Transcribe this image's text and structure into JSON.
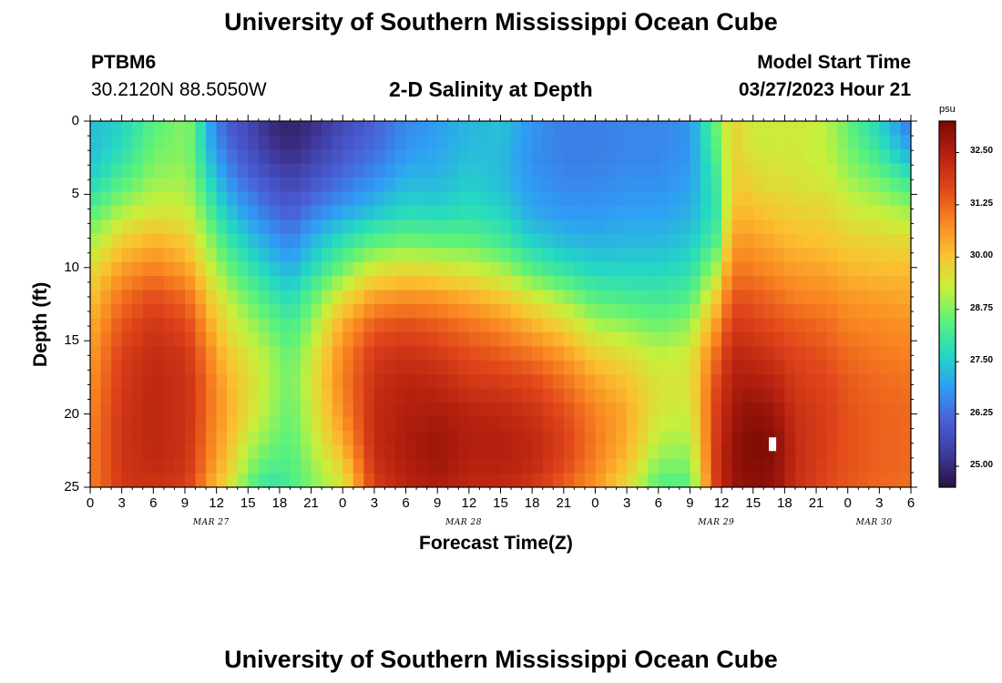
{
  "page": {
    "title": "University of Southern Mississippi Ocean Cube",
    "footer_title": "University of Southern Mississippi Ocean Cube",
    "station_id": "PTBM6",
    "station_coords": "30.2120N  88.5050W",
    "plot_title": "2-D Salinity at Depth",
    "model_start_label": "Model Start Time",
    "model_start_value": "03/27/2023 Hour 21"
  },
  "chart_data": {
    "type": "heatmap",
    "title": "2-D Salinity at Depth",
    "xlabel": "Forecast Time(Z)",
    "ylabel": "Depth (ft)",
    "x_unit": "hours since 00Z MAR 27",
    "x_range": [
      0,
      78
    ],
    "y_range": [
      0,
      25
    ],
    "y_inverted": true,
    "x_tick_values": [
      0,
      3,
      6,
      9,
      12,
      15,
      18,
      21,
      24,
      27,
      30,
      33,
      36,
      39,
      42,
      45,
      48,
      51,
      54,
      57,
      60,
      63,
      66,
      69,
      72,
      75,
      78
    ],
    "x_tick_labels": [
      "0",
      "3",
      "6",
      "9",
      "12",
      "15",
      "18",
      "21",
      "0",
      "3",
      "6",
      "9",
      "12",
      "15",
      "18",
      "21",
      "0",
      "3",
      "6",
      "9",
      "12",
      "15",
      "18",
      "21",
      "0",
      "3",
      "6"
    ],
    "y_tick_values": [
      0,
      5,
      10,
      15,
      20,
      25
    ],
    "y_tick_labels": [
      "0",
      "5",
      "10",
      "15",
      "20",
      "25"
    ],
    "date_labels": [
      {
        "text": "MAR 27",
        "x": 11.5
      },
      {
        "text": "MAR 28",
        "x": 35.5
      },
      {
        "text": "MAR 29",
        "x": 59.5
      },
      {
        "text": "MAR 30",
        "x": 74.5
      }
    ],
    "colorbar": {
      "unit": "psu",
      "min": 24.5,
      "max": 33.25,
      "tick_values": [
        25.0,
        26.25,
        27.5,
        28.75,
        30.0,
        31.25,
        32.5
      ],
      "tick_labels": [
        "25.00",
        "26.25",
        "27.50",
        "28.75",
        "30.00",
        "31.25",
        "32.50"
      ],
      "colors": [
        "#2b1140",
        "#3f3a9e",
        "#4a5fd6",
        "#2f9df5",
        "#24d9c2",
        "#5cf27a",
        "#c8f03a",
        "#fac230",
        "#f98421",
        "#e0451a",
        "#b5200f",
        "#7a0a04"
      ]
    },
    "surface": {
      "time_hours": [
        0,
        3,
        6,
        9,
        10,
        11,
        13,
        15,
        17,
        19,
        21,
        24,
        27,
        30,
        33,
        36,
        39,
        42,
        45,
        48,
        51,
        54,
        57,
        59.5,
        61,
        62,
        63,
        65,
        67,
        70,
        72,
        75,
        78
      ],
      "depth_ft": [
        0,
        2,
        4,
        6,
        8,
        10,
        12,
        14,
        16,
        18,
        20,
        22,
        24,
        25
      ],
      "salinity_psu": [
        [
          27.3,
          27.3,
          27.6,
          28.3,
          28.9,
          29.6,
          30.0,
          30.3,
          30.5,
          30.7,
          30.8,
          30.9,
          30.9,
          30.9
        ],
        [
          27.6,
          27.8,
          28.3,
          29.0,
          29.8,
          30.5,
          31.1,
          31.5,
          31.8,
          31.9,
          32.0,
          32.0,
          32.0,
          31.9
        ],
        [
          28.4,
          28.6,
          28.9,
          29.4,
          30.2,
          30.9,
          31.6,
          32.0,
          32.2,
          32.3,
          32.3,
          32.3,
          32.2,
          32.0
        ],
        [
          28.8,
          28.8,
          29.0,
          29.3,
          29.9,
          30.5,
          31.2,
          31.7,
          32.0,
          32.1,
          32.1,
          32.1,
          32.0,
          31.8
        ],
        [
          28.5,
          28.4,
          28.6,
          29.0,
          29.5,
          30.1,
          30.8,
          31.3,
          31.6,
          31.8,
          31.8,
          31.7,
          31.6,
          31.4
        ],
        [
          27.2,
          27.4,
          27.9,
          28.4,
          29.0,
          29.5,
          30.1,
          30.6,
          31.0,
          31.2,
          31.2,
          31.1,
          30.9,
          30.6
        ],
        [
          26.0,
          26.3,
          26.8,
          27.4,
          28.0,
          28.6,
          29.2,
          29.6,
          30.0,
          30.3,
          30.4,
          30.2,
          29.9,
          29.6
        ],
        [
          25.6,
          25.8,
          26.2,
          26.8,
          27.4,
          28.0,
          28.6,
          29.1,
          29.5,
          29.7,
          29.6,
          29.2,
          28.8,
          28.5
        ],
        [
          25.0,
          25.3,
          25.8,
          26.3,
          26.9,
          27.5,
          28.1,
          28.6,
          29.0,
          29.1,
          29.0,
          28.7,
          28.2,
          27.9
        ],
        [
          24.8,
          25.0,
          25.5,
          26.0,
          26.5,
          27.1,
          27.7,
          28.2,
          28.5,
          28.6,
          28.5,
          28.4,
          28.3,
          28.2
        ],
        [
          25.0,
          25.3,
          25.8,
          26.4,
          27.1,
          27.7,
          28.4,
          28.9,
          29.3,
          29.4,
          29.3,
          29.1,
          28.8,
          28.7
        ],
        [
          25.6,
          25.9,
          26.3,
          26.9,
          27.8,
          28.6,
          29.6,
          30.4,
          30.8,
          30.9,
          30.7,
          30.3,
          29.7,
          29.4
        ],
        [
          26.1,
          26.3,
          26.7,
          27.3,
          28.3,
          29.4,
          30.5,
          31.4,
          31.9,
          32.1,
          32.2,
          32.2,
          32.0,
          31.8
        ],
        [
          26.6,
          26.8,
          27.2,
          27.7,
          28.5,
          29.6,
          30.7,
          31.6,
          32.1,
          32.4,
          32.5,
          32.6,
          32.5,
          32.3
        ],
        [
          26.9,
          27.0,
          27.2,
          27.6,
          28.4,
          29.5,
          30.6,
          31.4,
          31.9,
          32.3,
          32.6,
          32.8,
          32.7,
          32.5
        ],
        [
          27.2,
          27.3,
          27.5,
          27.8,
          28.4,
          29.3,
          30.3,
          31.1,
          31.6,
          32.0,
          32.4,
          32.5,
          32.4,
          32.2
        ],
        [
          27.4,
          27.3,
          27.3,
          27.6,
          28.1,
          29.0,
          30.0,
          30.8,
          31.4,
          31.9,
          32.3,
          32.5,
          32.4,
          32.2
        ],
        [
          26.8,
          26.7,
          26.8,
          27.0,
          27.5,
          28.3,
          29.4,
          30.3,
          31.1,
          31.7,
          32.1,
          32.3,
          32.2,
          31.9
        ],
        [
          26.5,
          26.5,
          26.6,
          26.8,
          27.2,
          27.9,
          28.9,
          29.8,
          30.6,
          31.2,
          31.6,
          31.8,
          31.6,
          31.3
        ],
        [
          26.5,
          26.5,
          26.6,
          26.8,
          27.1,
          27.6,
          28.3,
          29.1,
          29.9,
          30.5,
          30.9,
          31.0,
          30.8,
          30.6
        ],
        [
          26.6,
          26.6,
          26.7,
          26.9,
          27.2,
          27.6,
          28.2,
          28.9,
          29.6,
          30.1,
          30.4,
          30.3,
          29.9,
          29.6
        ],
        [
          26.6,
          26.6,
          26.7,
          26.9,
          27.2,
          27.6,
          28.1,
          28.6,
          29.2,
          29.5,
          29.4,
          29.1,
          28.6,
          28.3
        ],
        [
          26.8,
          26.8,
          26.9,
          27.1,
          27.4,
          27.8,
          28.3,
          28.9,
          29.4,
          29.5,
          29.3,
          29.0,
          28.6,
          28.3
        ],
        [
          28.6,
          28.4,
          28.1,
          28.0,
          28.3,
          29.0,
          29.9,
          30.6,
          31.2,
          31.6,
          31.8,
          31.9,
          31.9,
          31.8
        ],
        [
          29.8,
          29.8,
          29.8,
          30.0,
          30.4,
          30.9,
          31.4,
          31.9,
          32.3,
          32.5,
          32.7,
          32.9,
          32.9,
          32.8
        ],
        [
          29.6,
          29.7,
          29.9,
          30.2,
          30.6,
          31.0,
          31.5,
          31.9,
          32.3,
          32.6,
          32.9,
          33.0,
          33.0,
          32.9
        ],
        [
          29.3,
          29.4,
          29.7,
          30.1,
          30.5,
          30.9,
          31.4,
          31.8,
          32.2,
          32.6,
          33.0,
          33.2,
          33.1,
          33.0
        ],
        [
          29.3,
          29.4,
          29.6,
          29.9,
          30.3,
          30.7,
          31.2,
          31.6,
          32.0,
          32.4,
          32.8,
          33.1,
          33.0,
          32.9
        ],
        [
          29.4,
          29.4,
          29.5,
          29.8,
          30.1,
          30.5,
          30.9,
          31.4,
          31.7,
          31.9,
          32.1,
          32.2,
          32.2,
          32.1
        ],
        [
          29.2,
          29.2,
          29.4,
          29.7,
          30.0,
          30.4,
          30.8,
          31.2,
          31.5,
          31.7,
          31.8,
          31.8,
          31.7,
          31.6
        ],
        [
          28.5,
          28.7,
          29.0,
          29.4,
          29.8,
          30.2,
          30.6,
          30.9,
          31.2,
          31.4,
          31.5,
          31.5,
          31.5,
          31.4
        ],
        [
          27.6,
          28.0,
          28.6,
          29.2,
          29.7,
          30.1,
          30.5,
          30.8,
          31.0,
          31.2,
          31.3,
          31.3,
          31.3,
          31.2
        ],
        [
          26.3,
          27.0,
          28.0,
          28.9,
          29.6,
          30.1,
          30.4,
          30.7,
          30.9,
          31.1,
          31.2,
          31.2,
          31.2,
          31.1
        ]
      ]
    }
  }
}
